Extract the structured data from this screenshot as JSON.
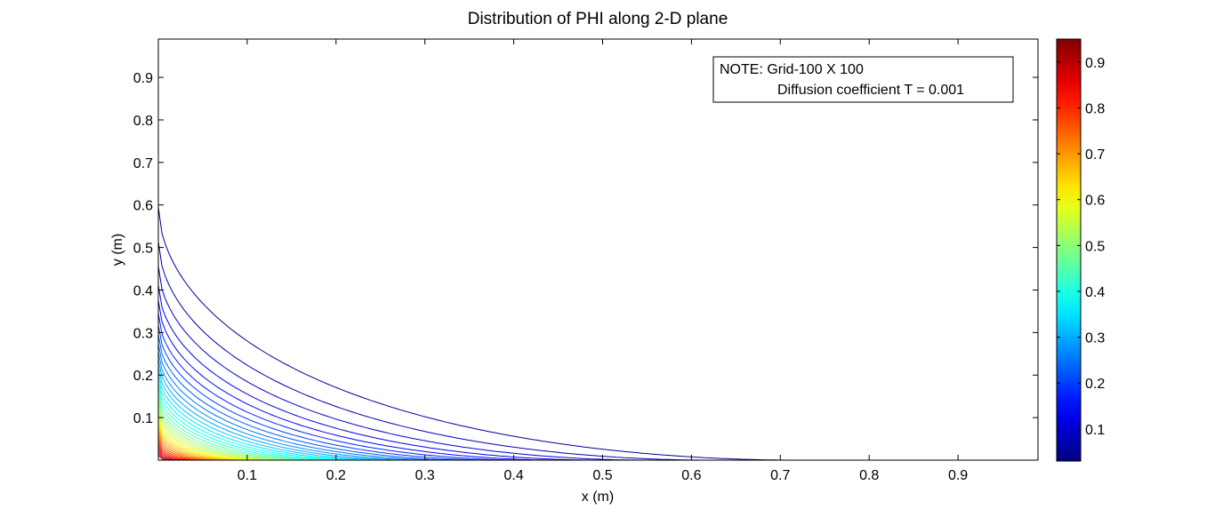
{
  "chart_data": {
    "type": "contour",
    "title": "Distribution of PHI along 2-D plane",
    "xlabel": "x (m)",
    "ylabel": "y (m)",
    "xlim": [
      0.0,
      0.99
    ],
    "ylim": [
      0.0,
      0.99
    ],
    "xticks": [
      0.1,
      0.2,
      0.3,
      0.4,
      0.5,
      0.6,
      0.7,
      0.8,
      0.9
    ],
    "yticks": [
      0.1,
      0.2,
      0.3,
      0.4,
      0.5,
      0.6,
      0.7,
      0.8,
      0.9
    ],
    "grid": false,
    "colormap": "jet",
    "colorbar": {
      "range": [
        0.03,
        0.95
      ],
      "ticks": [
        0.1,
        0.2,
        0.3,
        0.4,
        0.5,
        0.6,
        0.7,
        0.8,
        0.9
      ]
    },
    "contour_levels": [
      0.05,
      0.075,
      0.1,
      0.125,
      0.15,
      0.175,
      0.2,
      0.225,
      0.25,
      0.275,
      0.3,
      0.325,
      0.35,
      0.375,
      0.4,
      0.425,
      0.45,
      0.475,
      0.5,
      0.525,
      0.55,
      0.575,
      0.6,
      0.625,
      0.65,
      0.675,
      0.7,
      0.725,
      0.75,
      0.775,
      0.8,
      0.825,
      0.85,
      0.875,
      0.9,
      0.925
    ],
    "annotation": {
      "line1": "NOTE: Grid-100 X 100",
      "line2": "Diffusion coefficient T = 0.001"
    }
  }
}
